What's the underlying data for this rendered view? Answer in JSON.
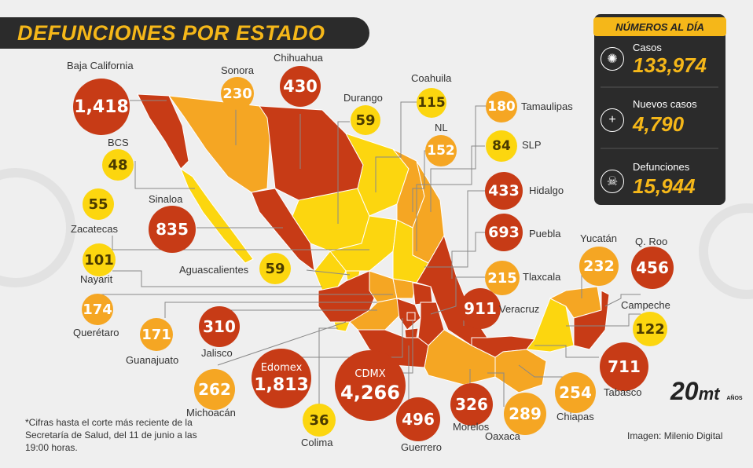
{
  "title": "DEFUNCIONES POR ESTADO",
  "panel": {
    "header": "NÚMEROS AL DÍA",
    "stats": [
      {
        "label": "Casos",
        "value": "133,974",
        "icon": "virus-icon"
      },
      {
        "label": "Nuevos casos",
        "value": "4,790",
        "icon": "plus-icon"
      },
      {
        "label": "Defunciones",
        "value": "15,944",
        "icon": "skull-icon"
      }
    ]
  },
  "states": [
    {
      "name": "Baja California",
      "value": "1,418",
      "level": "high"
    },
    {
      "name": "Sonora",
      "value": "230",
      "level": "medium"
    },
    {
      "name": "Chihuahua",
      "value": "430",
      "level": "high"
    },
    {
      "name": "Durango",
      "value": "59",
      "level": "low"
    },
    {
      "name": "Coahuila",
      "value": "115",
      "level": "low"
    },
    {
      "name": "Tamaulipas",
      "value": "180",
      "level": "medium"
    },
    {
      "name": "NL",
      "value": "152",
      "level": "medium"
    },
    {
      "name": "SLP",
      "value": "84",
      "level": "low"
    },
    {
      "name": "BCS",
      "value": "48",
      "level": "low"
    },
    {
      "name": "Hidalgo",
      "value": "433",
      "level": "high"
    },
    {
      "name": "Sinaloa",
      "value": "835",
      "level": "high"
    },
    {
      "name": "Zacatecas",
      "value": "55",
      "level": "low"
    },
    {
      "name": "Puebla",
      "value": "693",
      "level": "high"
    },
    {
      "name": "Nayarit",
      "value": "101",
      "level": "low"
    },
    {
      "name": "Aguascalientes",
      "value": "59",
      "level": "low"
    },
    {
      "name": "Tlaxcala",
      "value": "215",
      "level": "medium"
    },
    {
      "name": "Yucatán",
      "value": "232",
      "level": "medium"
    },
    {
      "name": "Q. Roo",
      "value": "456",
      "level": "high"
    },
    {
      "name": "Querétaro",
      "value": "174",
      "level": "medium"
    },
    {
      "name": "Veracruz",
      "value": "911",
      "level": "high"
    },
    {
      "name": "Campeche",
      "value": "122",
      "level": "low"
    },
    {
      "name": "Guanajuato",
      "value": "171",
      "level": "medium"
    },
    {
      "name": "Jalisco",
      "value": "310",
      "level": "high"
    },
    {
      "name": "Edomex",
      "value": "1,813",
      "level": "high"
    },
    {
      "name": "CDMX",
      "value": "4,266",
      "level": "high"
    },
    {
      "name": "Tabasco",
      "value": "711",
      "level": "high"
    },
    {
      "name": "Michoacán",
      "value": "262",
      "level": "medium"
    },
    {
      "name": "Colima",
      "value": "36",
      "level": "low"
    },
    {
      "name": "Guerrero",
      "value": "496",
      "level": "high"
    },
    {
      "name": "Morelos",
      "value": "326",
      "level": "high"
    },
    {
      "name": "Oaxaca",
      "value": "289",
      "level": "medium"
    },
    {
      "name": "Chiapas",
      "value": "254",
      "level": "medium"
    }
  ],
  "colors": {
    "low": "#fcd60f",
    "medium": "#f5a623",
    "high": "#c73b16",
    "dark": "#2b2b2b",
    "accent": "#f5b719"
  },
  "footnote": "*Cifras hasta el corte más reciente de la Secretaría de Salud, del 11 de junio a las 19:00 horas.",
  "credit": "Imagen: Milenio Digital",
  "logo": {
    "number": "20",
    "brand": "mt",
    "sub": "AÑOS"
  }
}
